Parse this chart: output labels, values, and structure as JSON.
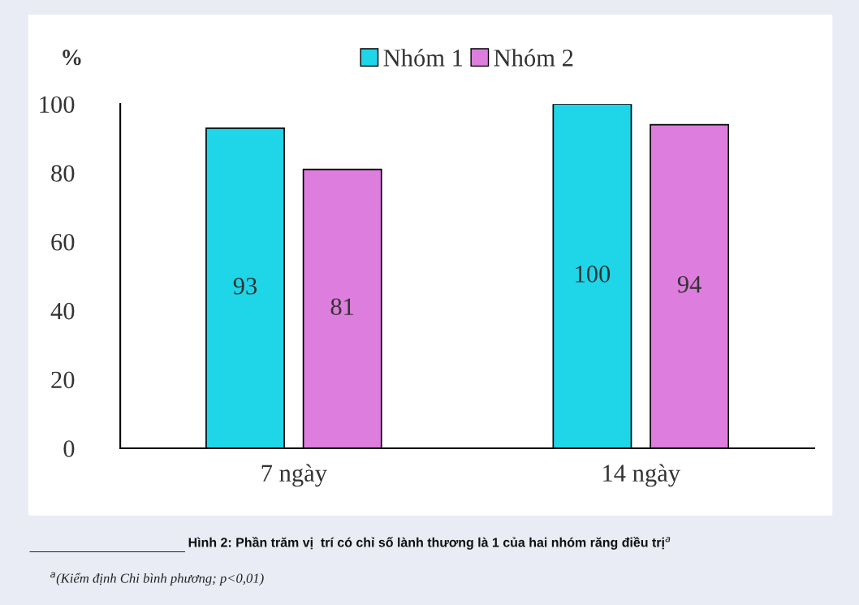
{
  "chart_data": {
    "type": "bar",
    "title": "Hình 2: Phần trăm vị  trí có chỉ số lành thương là 1 của hai nhóm răng điều trị$^{a}$",
    "ylabel": "%",
    "categories": [
      "7 ngày",
      "14 ngày"
    ],
    "series": [
      {
        "name": "Nhóm 1",
        "color": "#1fd5e8",
        "values": [
          93,
          100
        ]
      },
      {
        "name": "Nhóm 2",
        "color": "#dd7ddd",
        "values": [
          81,
          94
        ]
      }
    ],
    "ylim": [
      0,
      100
    ],
    "yticks": [
      0,
      20,
      40,
      60,
      80,
      100
    ],
    "data_labels": true,
    "legend": "top",
    "grid": false,
    "annotations": [
      "$^{a}$(Kiểm định Chi bình phương; p<0,01)"
    ]
  }
}
